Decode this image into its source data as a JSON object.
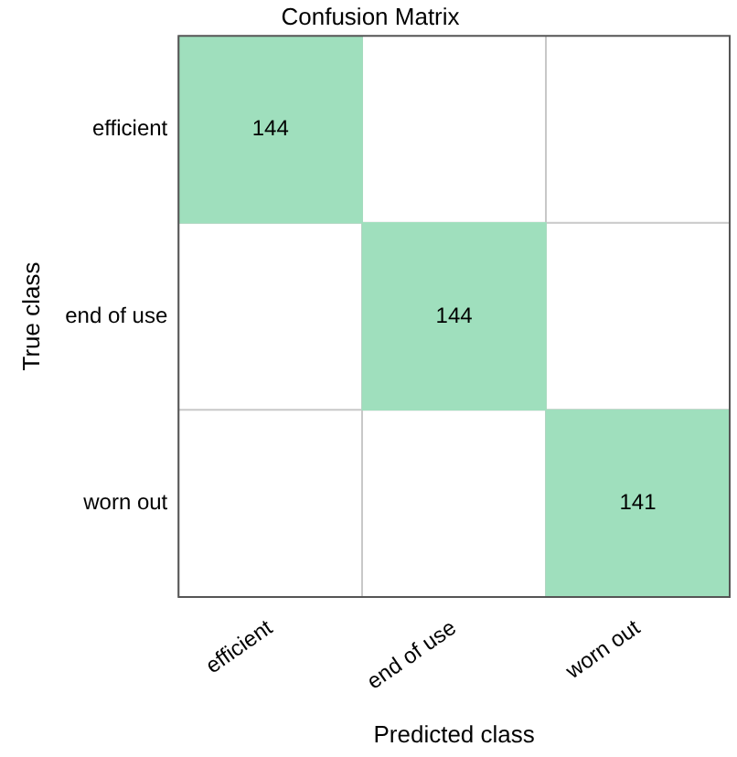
{
  "chart_data": {
    "type": "heatmap",
    "title": "Confusion Matrix",
    "xlabel": "Predicted class",
    "ylabel": "True class",
    "categories": [
      "efficient",
      "end of use",
      "worn out"
    ],
    "y_categories": [
      "efficient",
      "end of use",
      "worn out"
    ],
    "cells": [
      [
        144,
        null,
        null
      ],
      [
        null,
        144,
        null
      ],
      [
        null,
        null,
        141
      ]
    ],
    "color": "#9fdfbd",
    "data_labels": true,
    "grid": true
  }
}
